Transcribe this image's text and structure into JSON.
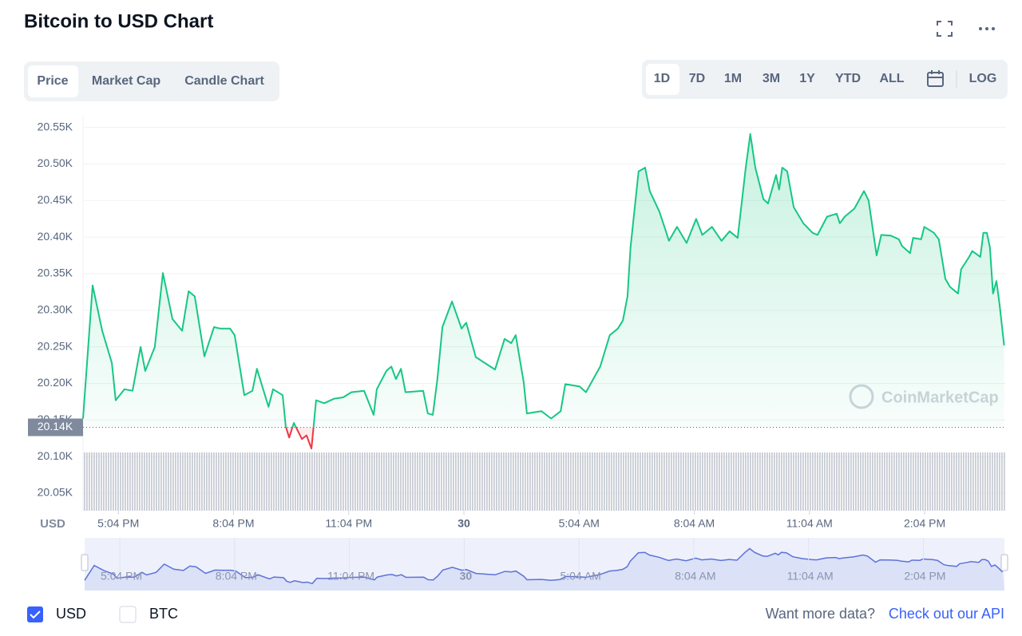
{
  "chart_data": {
    "type": "line",
    "title": "Bitcoin to USD Chart",
    "currency_label": "USD",
    "color": "#16c784",
    "negative_color": "#ea3943",
    "reference_line": {
      "value": 20140,
      "label": "20.14K"
    },
    "watermark": "CoinMarketCap",
    "xlim": [
      16.15,
      40.19
    ],
    "xticks": [
      {
        "value": 17.07,
        "label": "5:04 PM"
      },
      {
        "value": 20.07,
        "label": "8:04 PM"
      },
      {
        "value": 23.07,
        "label": "11:04 PM"
      },
      {
        "value": 26.07,
        "label": "30"
      },
      {
        "value": 29.07,
        "label": "5:04 AM"
      },
      {
        "value": 32.07,
        "label": "8:04 AM"
      },
      {
        "value": 35.07,
        "label": "11:04 AM"
      },
      {
        "value": 38.07,
        "label": "2:04 PM"
      }
    ],
    "ylim": [
      20026,
      20566
    ],
    "yticks": [
      {
        "value": 20050,
        "label": "20.05K"
      },
      {
        "value": 20100,
        "label": "20.10K"
      },
      {
        "value": 20150,
        "label": "20.15K"
      },
      {
        "value": 20200,
        "label": "20.20K"
      },
      {
        "value": 20250,
        "label": "20.25K"
      },
      {
        "value": 20300,
        "label": "20.30K"
      },
      {
        "value": 20350,
        "label": "20.35K"
      },
      {
        "value": 20400,
        "label": "20.40K"
      },
      {
        "value": 20450,
        "label": "20.45K"
      },
      {
        "value": 20500,
        "label": "20.50K"
      },
      {
        "value": 20550,
        "label": "20.55K"
      }
    ],
    "grid": true,
    "x": [
      16.15,
      16.4,
      16.65,
      16.9,
      17.0,
      17.23,
      17.44,
      17.65,
      17.77,
      18.02,
      18.23,
      18.48,
      18.73,
      18.9,
      19.06,
      19.31,
      19.56,
      19.73,
      19.98,
      20.1,
      20.35,
      20.56,
      20.68,
      20.98,
      21.1,
      21.35,
      21.43,
      21.52,
      21.64,
      21.85,
      21.97,
      22.1,
      22.22,
      22.43,
      22.68,
      22.93,
      23.14,
      23.47,
      23.72,
      23.8,
      24.05,
      24.18,
      24.3,
      24.43,
      24.55,
      25.01,
      25.13,
      25.26,
      25.38,
      25.51,
      25.76,
      26.01,
      26.13,
      26.38,
      26.76,
      26.88,
      27.13,
      27.3,
      27.42,
      27.63,
      27.71,
      28.09,
      28.34,
      28.59,
      28.71,
      29.08,
      29.25,
      29.62,
      29.87,
      30.08,
      30.21,
      30.33,
      30.41,
      30.62,
      30.79,
      30.91,
      31.16,
      31.33,
      31.41,
      31.62,
      31.87,
      32.12,
      32.28,
      32.53,
      32.78,
      32.99,
      33.2,
      33.41,
      33.53,
      33.66,
      33.87,
      33.99,
      34.2,
      34.28,
      34.36,
      34.49,
      34.66,
      34.91,
      35.15,
      35.28,
      35.53,
      35.78,
      35.86,
      35.99,
      36.24,
      36.49,
      36.61,
      36.82,
      36.94,
      37.19,
      37.4,
      37.48,
      37.69,
      37.77,
      37.98,
      38.06,
      38.31,
      38.44,
      38.61,
      38.73,
      38.94,
      39.02,
      39.23,
      39.31,
      39.52,
      39.6,
      39.69,
      39.77,
      39.85,
      39.94,
      40.02,
      40.14
    ],
    "values": [
      20152,
      20334,
      20272,
      20228,
      20177,
      20192,
      20190,
      20250,
      20217,
      20250,
      20351,
      20288,
      20272,
      20326,
      20319,
      20237,
      20277,
      20275,
      20275,
      20266,
      20184,
      20190,
      20220,
      20168,
      20192,
      20184,
      20141,
      20126,
      20146,
      20124,
      20129,
      20111,
      20177,
      20173,
      20179,
      20181,
      20188,
      20190,
      20157,
      20192,
      20217,
      20223,
      20206,
      20220,
      20188,
      20190,
      20159,
      20157,
      20206,
      20277,
      20312,
      20275,
      20283,
      20236,
      20223,
      20219,
      20261,
      20255,
      20266,
      20201,
      20159,
      20162,
      20152,
      20162,
      20199,
      20196,
      20188,
      20223,
      20266,
      20275,
      20286,
      20319,
      20386,
      20490,
      20495,
      20463,
      20435,
      20408,
      20395,
      20414,
      20392,
      20425,
      20403,
      20414,
      20395,
      20408,
      20399,
      20495,
      20541,
      20495,
      20452,
      20446,
      20485,
      20465,
      20495,
      20490,
      20441,
      20419,
      20406,
      20403,
      20428,
      20432,
      20419,
      20428,
      20439,
      20463,
      20450,
      20375,
      20403,
      20402,
      20397,
      20388,
      20378,
      20399,
      20397,
      20414,
      20406,
      20397,
      20343,
      20332,
      20323,
      20356,
      20373,
      20381,
      20373,
      20406,
      20406,
      20386,
      20323,
      20340,
      20309,
      20252
    ]
  },
  "ui": {
    "tabs": [
      "Price",
      "Market Cap",
      "Candle Chart"
    ],
    "ranges": [
      "1D",
      "7D",
      "1M",
      "3M",
      "1Y",
      "YTD",
      "ALL"
    ],
    "log_label": "LOG",
    "currencies": [
      "USD",
      "BTC"
    ],
    "footer": {
      "prompt": "Want more data?",
      "link": "Check out our API"
    }
  }
}
